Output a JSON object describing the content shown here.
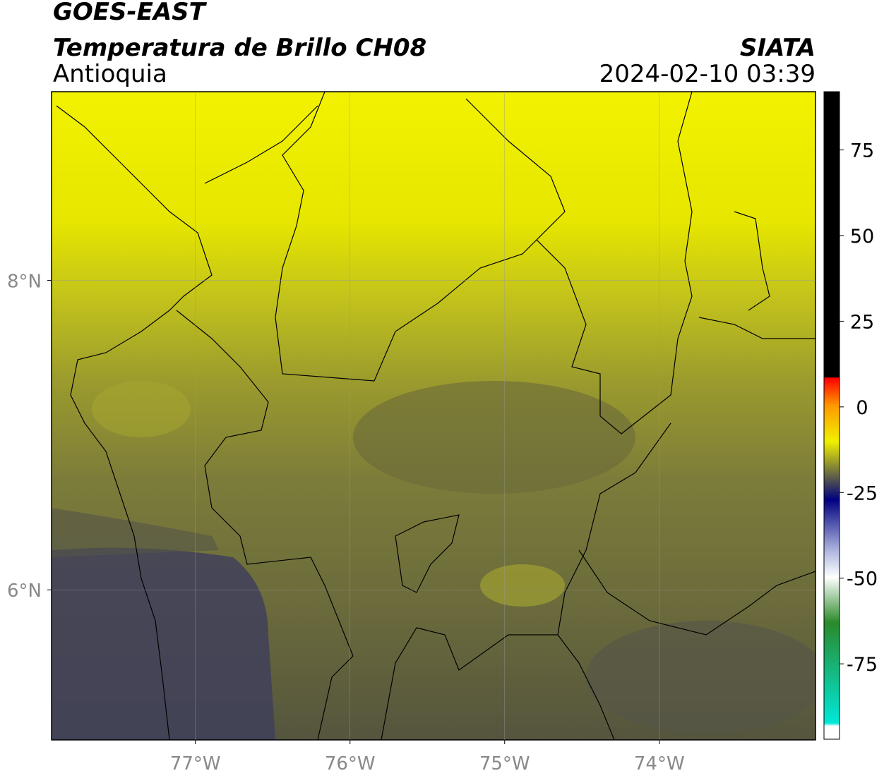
{
  "header": {
    "satellite": "GOES-EAST",
    "product": "Temperatura de Brillo CH08",
    "region": "Antioquia",
    "source": "SIATA",
    "datetime": "2024-02-10 03:39"
  },
  "map": {
    "xlim": [
      -77.93,
      -72.99
    ],
    "ylim": [
      5.03,
      9.22
    ],
    "xticks": [
      {
        "value": -77,
        "label": "77°W"
      },
      {
        "value": -76,
        "label": "76°W"
      },
      {
        "value": -75,
        "label": "75°W"
      },
      {
        "value": -74,
        "label": "74°W"
      }
    ],
    "yticks": [
      {
        "value": 8,
        "label": "8°N"
      },
      {
        "value": 6,
        "label": "6°N"
      }
    ],
    "grid": true
  },
  "colorbar": {
    "lim": [
      -97,
      92
    ],
    "ticks": [
      75,
      50,
      25,
      0,
      -25,
      -50,
      -75
    ]
  }
}
